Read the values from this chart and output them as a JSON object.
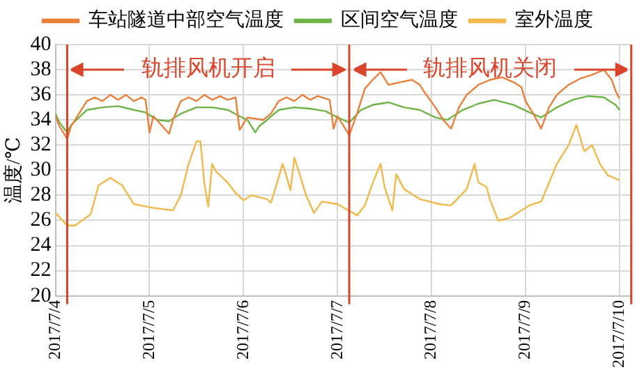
{
  "chart_data": {
    "type": "line",
    "ylabel": "温度/℃",
    "ylim": [
      20,
      40
    ],
    "yticks": [
      20,
      22,
      24,
      26,
      28,
      30,
      32,
      34,
      36,
      38,
      40
    ],
    "xlim": [
      "2017-07-04T00:00",
      "2017-07-10T03:00"
    ],
    "xticks": [
      {
        "value": "2017-07-04",
        "label": "2017/7/4"
      },
      {
        "value": "2017-07-05",
        "label": "2017/7/5"
      },
      {
        "value": "2017-07-06",
        "label": "2017/7/6"
      },
      {
        "value": "2017-07-07",
        "label": "2017/7/7"
      },
      {
        "value": "2017-07-08",
        "label": "2017/7/8"
      },
      {
        "value": "2017-07-09",
        "label": "2017/7/9"
      },
      {
        "value": "2017-07-10",
        "label": "2017/7/10"
      }
    ],
    "grid": true,
    "legend": "top",
    "marker": "none",
    "line_style": "solid",
    "ref_lines": [
      {
        "axis": "x",
        "value": "2017-07-04T03:00",
        "color": "#d9452b"
      },
      {
        "axis": "x",
        "value": "2017-07-07T03:00",
        "color": "#d9452b"
      },
      {
        "axis": "x",
        "value": "2017-07-10T03:00",
        "color": "#d9452b"
      }
    ],
    "annotations": [
      "轨排风机开启",
      "轨排风机关闭"
    ],
    "series": [
      {
        "name": "车站隧道中部空气温度",
        "color": "#e8803c",
        "x": [
          "2017-07-04T00:00",
          "2017-07-04T01:00",
          "2017-07-04T03:00",
          "2017-07-04T04:00",
          "2017-07-04T06:00",
          "2017-07-04T08:00",
          "2017-07-04T10:00",
          "2017-07-04T12:00",
          "2017-07-04T14:00",
          "2017-07-04T16:00",
          "2017-07-04T18:00",
          "2017-07-04T20:00",
          "2017-07-04T22:00",
          "2017-07-04T23:00",
          "2017-07-05T00:00",
          "2017-07-05T01:00",
          "2017-07-05T05:00",
          "2017-07-05T06:00",
          "2017-07-05T08:00",
          "2017-07-05T10:00",
          "2017-07-05T12:00",
          "2017-07-05T14:00",
          "2017-07-05T16:00",
          "2017-07-05T18:00",
          "2017-07-05T20:00",
          "2017-07-05T22:00",
          "2017-07-05T23:00",
          "2017-07-06T01:00",
          "2017-07-06T05:00",
          "2017-07-06T07:00",
          "2017-07-06T09:00",
          "2017-07-06T11:00",
          "2017-07-06T13:00",
          "2017-07-06T15:00",
          "2017-07-06T17:00",
          "2017-07-06T19:00",
          "2017-07-06T21:00",
          "2017-07-06T22:00",
          "2017-07-06T23:00",
          "2017-07-07T00:00",
          "2017-07-07T03:00",
          "2017-07-07T05:00",
          "2017-07-07T07:00",
          "2017-07-07T09:00",
          "2017-07-07T11:00",
          "2017-07-07T13:00",
          "2017-07-07T16:00",
          "2017-07-07T19:00",
          "2017-07-07T21:00",
          "2017-07-07T22:00",
          "2017-07-08T01:00",
          "2017-07-08T03:00",
          "2017-07-08T05:00",
          "2017-07-08T07:00",
          "2017-07-08T09:00",
          "2017-07-08T12:00",
          "2017-07-08T15:00",
          "2017-07-08T18:00",
          "2017-07-08T21:00",
          "2017-07-08T23:00",
          "2017-07-09T00:00",
          "2017-07-09T02:00",
          "2017-07-09T04:00",
          "2017-07-09T06:00",
          "2017-07-09T08:00",
          "2017-07-09T11:00",
          "2017-07-09T14:00",
          "2017-07-09T17:00",
          "2017-07-09T20:00",
          "2017-07-09T22:00",
          "2017-07-09T23:00",
          "2017-07-10T00:00"
        ],
        "values": [
          34.3,
          33.5,
          32.5,
          33.5,
          34.5,
          35.5,
          35.8,
          35.5,
          36.0,
          35.6,
          36.0,
          35.5,
          35.8,
          35.6,
          33.0,
          34.3,
          32.9,
          34.0,
          35.5,
          35.8,
          35.5,
          36.0,
          35.6,
          35.9,
          35.6,
          35.8,
          33.2,
          34.2,
          34.0,
          34.5,
          35.5,
          35.8,
          35.5,
          36.0,
          35.6,
          35.9,
          35.7,
          35.6,
          33.3,
          34.3,
          32.8,
          34.5,
          36.5,
          37.2,
          37.8,
          36.8,
          37.0,
          37.2,
          36.8,
          36.3,
          35.0,
          34.0,
          33.3,
          35.0,
          36.0,
          36.8,
          37.2,
          37.4,
          37.0,
          36.6,
          35.5,
          34.5,
          33.3,
          35.0,
          36.0,
          36.8,
          37.3,
          37.6,
          38.0,
          37.2,
          36.3,
          35.7
        ]
      },
      {
        "name": "区间空气温度",
        "color": "#6fb346",
        "x": [
          "2017-07-04T00:00",
          "2017-07-04T01:00",
          "2017-07-04T03:00",
          "2017-07-04T04:00",
          "2017-07-04T06:00",
          "2017-07-04T08:00",
          "2017-07-04T12:00",
          "2017-07-04T16:00",
          "2017-07-04T20:00",
          "2017-07-04T23:00",
          "2017-07-05T02:00",
          "2017-07-05T05:00",
          "2017-07-05T08:00",
          "2017-07-05T12:00",
          "2017-07-05T16:00",
          "2017-07-05T20:00",
          "2017-07-05T23:00",
          "2017-07-06T01:00",
          "2017-07-06T03:00",
          "2017-07-06T04:00",
          "2017-07-06T06:00",
          "2017-07-06T09:00",
          "2017-07-06T13:00",
          "2017-07-06T17:00",
          "2017-07-06T21:00",
          "2017-07-07T00:00",
          "2017-07-07T03:00",
          "2017-07-07T06:00",
          "2017-07-07T09:00",
          "2017-07-07T13:00",
          "2017-07-07T17:00",
          "2017-07-07T21:00",
          "2017-07-08T01:00",
          "2017-07-08T04:00",
          "2017-07-08T08:00",
          "2017-07-08T12:00",
          "2017-07-08T16:00",
          "2017-07-08T21:00",
          "2017-07-09T01:00",
          "2017-07-09T04:00",
          "2017-07-09T08:00",
          "2017-07-09T12:00",
          "2017-07-09T16:00",
          "2017-07-09T20:00",
          "2017-07-09T23:00",
          "2017-07-10T00:00"
        ],
        "values": [
          34.5,
          33.8,
          33.0,
          33.6,
          34.2,
          34.8,
          35.0,
          35.1,
          34.8,
          34.6,
          34.0,
          33.9,
          34.5,
          35.0,
          35.0,
          34.8,
          34.3,
          34.0,
          33.0,
          33.5,
          34.0,
          34.8,
          35.0,
          34.9,
          34.7,
          34.2,
          33.8,
          34.8,
          35.2,
          35.4,
          35.0,
          34.8,
          34.2,
          34.0,
          34.8,
          35.3,
          35.6,
          35.2,
          34.6,
          34.2,
          35.0,
          35.6,
          35.9,
          35.8,
          35.2,
          34.8
        ]
      },
      {
        "name": "室外温度",
        "color": "#f0b94a",
        "x": [
          "2017-07-04T00:00",
          "2017-07-04T03:00",
          "2017-07-04T05:00",
          "2017-07-04T09:00",
          "2017-07-04T11:00",
          "2017-07-04T14:00",
          "2017-07-04T17:00",
          "2017-07-04T20:00",
          "2017-07-05T01:00",
          "2017-07-05T06:00",
          "2017-07-05T08:00",
          "2017-07-05T10:00",
          "2017-07-05T12:00",
          "2017-07-05T13:00",
          "2017-07-05T14:00",
          "2017-07-05T15:00",
          "2017-07-05T16:00",
          "2017-07-05T17:00",
          "2017-07-05T20:00",
          "2017-07-05T22:00",
          "2017-07-06T00:00",
          "2017-07-06T02:00",
          "2017-07-06T06:00",
          "2017-07-06T07:00",
          "2017-07-06T08:00",
          "2017-07-06T10:00",
          "2017-07-06T11:00",
          "2017-07-06T12:00",
          "2017-07-06T13:00",
          "2017-07-06T15:00",
          "2017-07-06T16:00",
          "2017-07-06T18:00",
          "2017-07-06T20:00",
          "2017-07-07T00:00",
          "2017-07-07T05:00",
          "2017-07-07T07:00",
          "2017-07-07T09:00",
          "2017-07-07T11:00",
          "2017-07-07T12:00",
          "2017-07-07T14:00",
          "2017-07-07T15:00",
          "2017-07-07T17:00",
          "2017-07-07T21:00",
          "2017-07-08T02:00",
          "2017-07-08T05:00",
          "2017-07-08T09:00",
          "2017-07-08T11:00",
          "2017-07-08T12:00",
          "2017-07-08T14:00",
          "2017-07-08T15:00",
          "2017-07-08T17:00",
          "2017-07-08T20:00",
          "2017-07-09T01:00",
          "2017-07-09T04:00",
          "2017-07-09T08:00",
          "2017-07-09T11:00",
          "2017-07-09T13:00",
          "2017-07-09T15:00",
          "2017-07-09T17:00",
          "2017-07-09T19:00",
          "2017-07-09T21:00",
          "2017-07-10T00:00"
        ],
        "values": [
          26.6,
          25.6,
          25.6,
          26.5,
          28.8,
          29.4,
          28.8,
          27.3,
          27.0,
          26.8,
          28.0,
          30.5,
          32.3,
          32.3,
          29.0,
          27.1,
          30.5,
          29.9,
          29.0,
          28.2,
          27.6,
          28.0,
          27.7,
          27.4,
          28.4,
          30.5,
          29.5,
          28.4,
          31.0,
          29.0,
          28.0,
          26.6,
          27.5,
          27.3,
          26.4,
          27.2,
          29.0,
          30.5,
          28.7,
          26.8,
          29.7,
          28.5,
          27.7,
          27.3,
          27.2,
          28.5,
          30.5,
          29.0,
          28.7,
          27.6,
          26.0,
          26.2,
          27.2,
          27.5,
          30.5,
          32.0,
          33.6,
          31.5,
          32.0,
          30.5,
          29.6,
          29.2
        ]
      }
    ]
  }
}
